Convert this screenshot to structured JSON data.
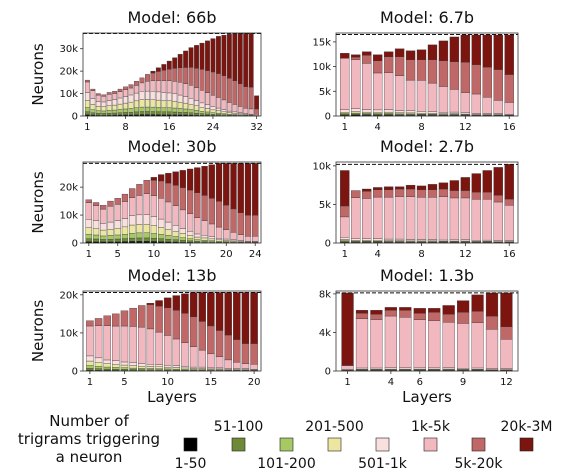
{
  "bin_colors": [
    "#000000",
    "#6f8a37",
    "#a6c964",
    "#ece6a1",
    "#f9dfdd",
    "#f2b8c0",
    "#c06767",
    "#7c150f"
  ],
  "legend": {
    "title_lines": [
      "Number of",
      "trigrams triggering",
      "a neuron"
    ],
    "bins": [
      "1-50",
      "51-100",
      "101-200",
      "201-500",
      "501-1k",
      "1k-5k",
      "5k-20k",
      "20k-3M"
    ]
  },
  "ylabel": "Neurons",
  "xlabel": "Layers",
  "chart_data": [
    {
      "type": "bar",
      "stacked": true,
      "title": "Model: 66b",
      "n_layers": 32,
      "ylim": [
        0,
        37000
      ],
      "dashed_line": 36800,
      "yticks": [
        0,
        10000,
        20000,
        30000
      ],
      "ytick_labels": [
        "0",
        "10k",
        "20k",
        "30k"
      ],
      "xticks": [
        1,
        8,
        16,
        24,
        32
      ],
      "xtick_labels": [
        "1",
        "8",
        "16",
        "24",
        "32"
      ],
      "totals": [
        16000,
        12000,
        10000,
        9500,
        10500,
        11000,
        12000,
        13000,
        14000,
        15500,
        17000,
        18500,
        20000,
        21500,
        23000,
        24500,
        26000,
        27500,
        29000,
        30500,
        31500,
        32500,
        33500,
        34500,
        35500,
        36000,
        36500,
        36800,
        36800,
        36800,
        36800,
        9000
      ],
      "low_frac": [
        0.65,
        0.65,
        0.65,
        0.66,
        0.66,
        0.67,
        0.67,
        0.67,
        0.67,
        0.66,
        0.65,
        0.6,
        0.55,
        0.5,
        0.45,
        0.42,
        0.38,
        0.34,
        0.3,
        0.26,
        0.22,
        0.18,
        0.15,
        0.12,
        0.1,
        0.08,
        0.06,
        0.05,
        0.04,
        0.03,
        0.02,
        0.02
      ]
    },
    {
      "type": "bar",
      "stacked": true,
      "title": "Model: 6.7b",
      "n_layers": 16,
      "ylim": [
        0,
        16800
      ],
      "dashed_line": 16500,
      "yticks": [
        0,
        5000,
        10000,
        15000
      ],
      "ytick_labels": [
        "0",
        "5k",
        "10k",
        "15k"
      ],
      "xticks": [
        1,
        4,
        8,
        12,
        16
      ],
      "xtick_labels": [
        "1",
        "4",
        "8",
        "12",
        "16"
      ],
      "totals": [
        12700,
        12400,
        13000,
        12400,
        13000,
        13600,
        13200,
        13400,
        14400,
        15200,
        16000,
        16400,
        16400,
        16400,
        16400,
        16400
      ],
      "low_frac": [
        0.1,
        0.12,
        0.1,
        0.1,
        0.1,
        0.08,
        0.08,
        0.07,
        0.06,
        0.05,
        0.05,
        0.04,
        0.03,
        0.03,
        0.03,
        0.02
      ],
      "salmon_frac": [
        0.0,
        0.05,
        0.15,
        0.25,
        0.3,
        0.35,
        0.4,
        0.4,
        0.45,
        0.5,
        0.55,
        0.6,
        0.6,
        0.65,
        0.7,
        0.7
      ],
      "dark_top": [
        1000,
        500,
        700,
        1200,
        1000,
        1600,
        1800,
        2000,
        3000,
        4000,
        5000,
        5500,
        6000,
        6500,
        7000,
        8000
      ]
    },
    {
      "type": "bar",
      "stacked": true,
      "title": "Model: 30b",
      "n_layers": 24,
      "ylim": [
        0,
        29000
      ],
      "dashed_line": 28500,
      "yticks": [
        0,
        10000,
        20000
      ],
      "ytick_labels": [
        "0",
        "10k",
        "20k"
      ],
      "xticks": [
        1,
        5,
        10,
        15,
        20,
        24
      ],
      "xtick_labels": [
        "1",
        "5",
        "10",
        "15",
        "20",
        "24"
      ],
      "totals": [
        15500,
        14500,
        13500,
        15000,
        16000,
        17500,
        19500,
        21000,
        22500,
        23500,
        24500,
        25000,
        25500,
        26000,
        26500,
        27000,
        27500,
        28000,
        28500,
        28500,
        28500,
        28500,
        28500,
        28500
      ],
      "low_frac": [
        0.55,
        0.55,
        0.52,
        0.5,
        0.5,
        0.5,
        0.5,
        0.48,
        0.45,
        0.4,
        0.35,
        0.3,
        0.25,
        0.2,
        0.16,
        0.12,
        0.1,
        0.08,
        0.06,
        0.05,
        0.04,
        0.03,
        0.02,
        0.02
      ]
    },
    {
      "type": "bar",
      "stacked": true,
      "title": "Model: 2.7b",
      "n_layers": 16,
      "ylim": [
        0,
        10500
      ],
      "dashed_line": 10200,
      "yticks": [
        0,
        5000,
        10000
      ],
      "ytick_labels": [
        "0",
        "5k",
        "10k"
      ],
      "xticks": [
        1,
        4,
        8,
        12,
        16
      ],
      "xtick_labels": [
        "1",
        "4",
        "8",
        "12",
        "16"
      ],
      "totals": [
        9400,
        6800,
        7000,
        7200,
        7300,
        7300,
        7500,
        7400,
        7600,
        7800,
        8100,
        8500,
        9000,
        9400,
        9800,
        10200
      ],
      "low_frac": [
        0.08,
        0.08,
        0.08,
        0.08,
        0.07,
        0.07,
        0.06,
        0.06,
        0.06,
        0.05,
        0.05,
        0.05,
        0.04,
        0.04,
        0.03,
        0.03
      ],
      "salmon_frac": [
        0.35,
        0.15,
        0.15,
        0.15,
        0.15,
        0.15,
        0.15,
        0.15,
        0.15,
        0.15,
        0.15,
        0.15,
        0.15,
        0.15,
        0.15,
        0.15
      ],
      "dark_top": [
        4600,
        0,
        300,
        300,
        400,
        300,
        500,
        500,
        700,
        800,
        1300,
        1700,
        2400,
        2800,
        3600,
        4500
      ]
    },
    {
      "type": "bar",
      "stacked": true,
      "title": "Model: 13b",
      "n_layers": 20,
      "ylim": [
        0,
        21000
      ],
      "dashed_line": 20600,
      "yticks": [
        0,
        10000,
        20000
      ],
      "ytick_labels": [
        "0",
        "10k",
        "20k"
      ],
      "xticks": [
        1,
        5,
        10,
        15,
        20
      ],
      "xtick_labels": [
        "1",
        "5",
        "10",
        "15",
        "20"
      ],
      "totals": [
        13200,
        13800,
        14500,
        15000,
        15800,
        16500,
        17200,
        17800,
        18500,
        19200,
        19800,
        20300,
        20600,
        20600,
        20600,
        20600,
        20600,
        20600,
        20600,
        20600
      ],
      "low_frac": [
        0.3,
        0.25,
        0.2,
        0.18,
        0.15,
        0.13,
        0.11,
        0.1,
        0.09,
        0.08,
        0.07,
        0.06,
        0.05,
        0.05,
        0.04,
        0.04,
        0.03,
        0.03,
        0.03,
        0.02
      ]
    },
    {
      "type": "bar",
      "stacked": true,
      "title": "Model: 1.3b",
      "n_layers": 12,
      "ylim": [
        0,
        8300
      ],
      "dashed_line": 8100,
      "yticks": [
        0,
        4000,
        8000
      ],
      "ytick_labels": [
        "0",
        "4k",
        "8k"
      ],
      "xticks": [
        1,
        4,
        6,
        9,
        12
      ],
      "xtick_labels": [
        "1",
        "4",
        "6",
        "9",
        "12"
      ],
      "totals": [
        8100,
        6300,
        6300,
        6600,
        6600,
        6500,
        6500,
        6800,
        7300,
        7900,
        8100,
        8100
      ],
      "low_frac": [
        0.02,
        0.05,
        0.05,
        0.05,
        0.05,
        0.05,
        0.05,
        0.05,
        0.04,
        0.04,
        0.03,
        0.03
      ],
      "salmon_frac": [
        0.08,
        0.1,
        0.1,
        0.1,
        0.12,
        0.12,
        0.15,
        0.15,
        0.2,
        0.2,
        0.25,
        0.3
      ],
      "dark_top": [
        7500,
        300,
        400,
        300,
        300,
        500,
        400,
        900,
        1200,
        1700,
        2400,
        3500
      ]
    }
  ]
}
